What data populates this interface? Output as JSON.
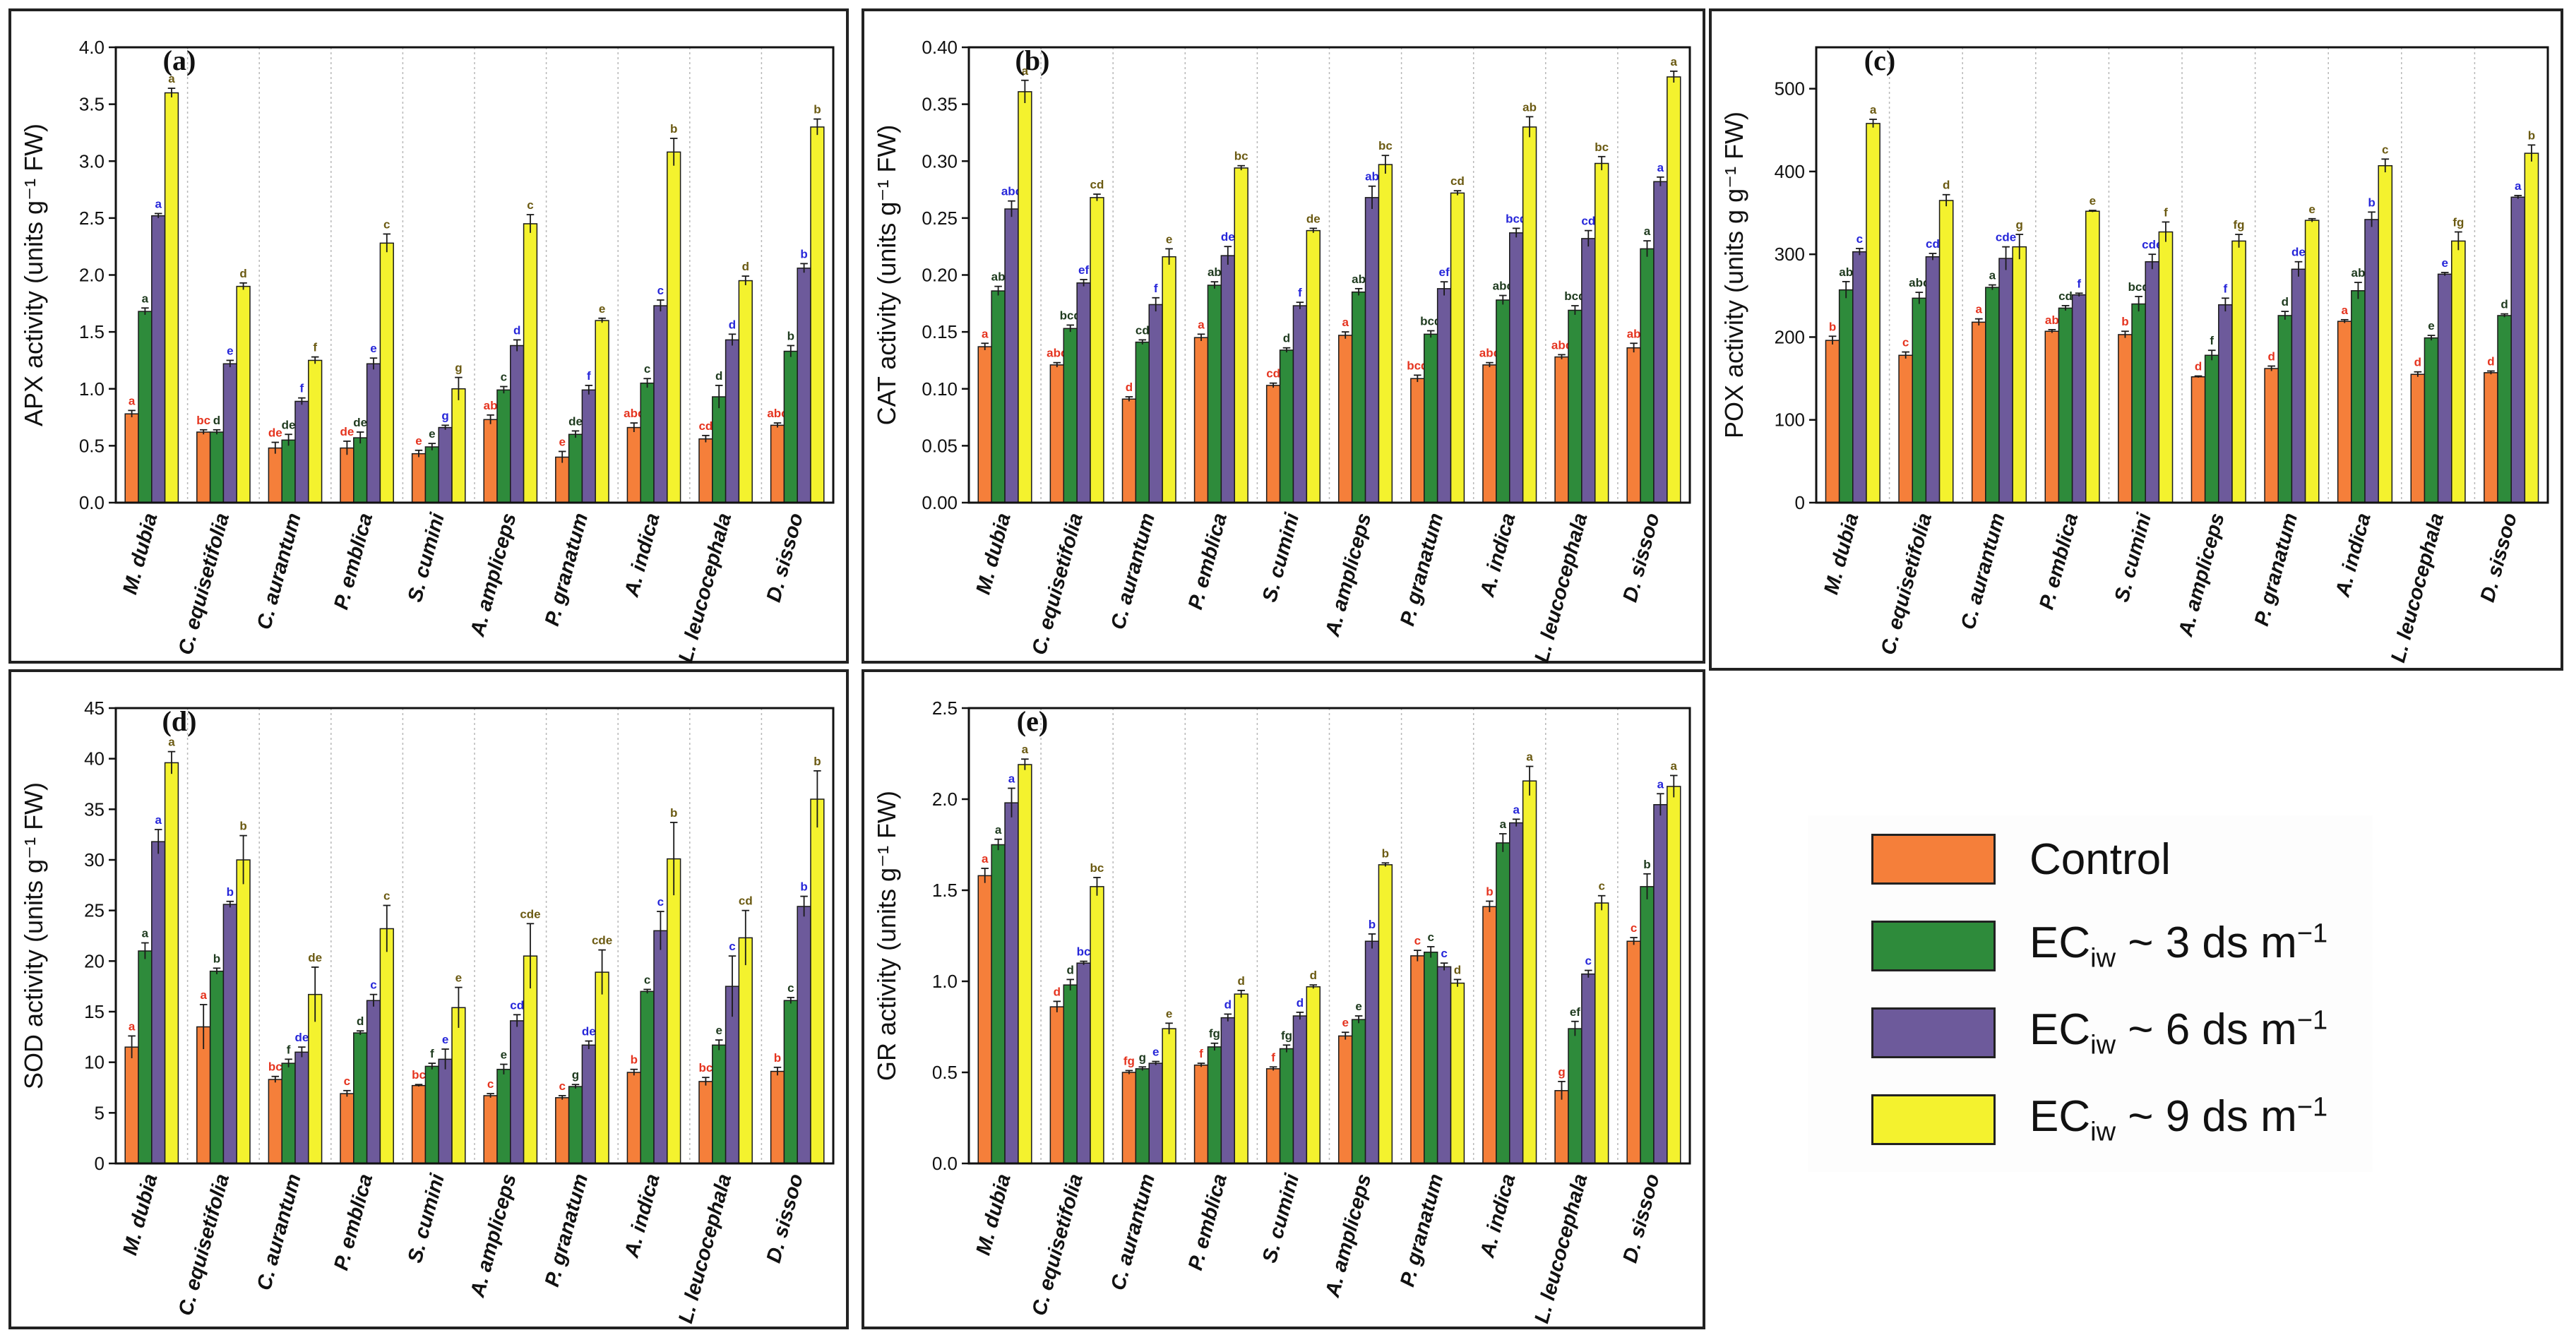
{
  "colors": {
    "control": "#F57F3A",
    "ec3": "#2E8B3B",
    "ec6": "#6D5A9B",
    "ec9": "#F4F22E",
    "sig_control": "#E5341F",
    "sig_ec3": "#1E3A1E",
    "sig_ec6": "#2626D9",
    "sig_ec9": "#6B5A12"
  },
  "legend": [
    {
      "label": "Control",
      "main": "Control",
      "sub": "",
      "suffix": ""
    },
    {
      "label": "ECiw ~ 3 ds m−1",
      "main": "EC",
      "sub": "iw",
      "suffix": " ~ 3 ds m",
      "sup": "−1"
    },
    {
      "label": "ECiw ~ 6 ds m−1",
      "main": "EC",
      "sub": "iw",
      "suffix": " ~ 6 ds m",
      "sup": "−1"
    },
    {
      "label": "ECiw ~ 9 ds m−1",
      "main": "EC",
      "sub": "iw",
      "suffix": " ~ 9 ds m",
      "sup": "−1"
    }
  ],
  "chart_data": [
    {
      "panel": "(a)",
      "type": "bar",
      "ylabel": "APX activity (units g⁻¹ FW)",
      "ylim": [
        0,
        4.0
      ],
      "yticks": [
        "0.0",
        "0.5",
        "1.0",
        "1.5",
        "2.0",
        "2.5",
        "3.0",
        "3.5",
        "4.0"
      ],
      "categories": [
        "M. dubia",
        "C. equisetifolia",
        "C. aurantum",
        "P. emblica",
        "S. cumini",
        "A. amplicеps",
        "P. granatum",
        "A. indica",
        "L. leucocephala",
        "D. sissoo"
      ],
      "series": [
        {
          "name": "Control",
          "values": [
            0.78,
            0.62,
            0.48,
            0.48,
            0.43,
            0.73,
            0.4,
            0.66,
            0.56,
            0.68
          ],
          "errors": [
            0.03,
            0.02,
            0.05,
            0.06,
            0.03,
            0.04,
            0.05,
            0.04,
            0.03,
            0.02
          ],
          "letters": [
            "a",
            "bc",
            "de",
            "de",
            "e",
            "ab",
            "e",
            "abc",
            "cd",
            "abc"
          ]
        },
        {
          "name": "ECiw ~ 3 ds m-1",
          "values": [
            1.68,
            0.62,
            0.55,
            0.57,
            0.49,
            0.99,
            0.6,
            1.05,
            0.93,
            1.33
          ],
          "errors": [
            0.03,
            0.02,
            0.05,
            0.05,
            0.03,
            0.03,
            0.03,
            0.04,
            0.1,
            0.05
          ],
          "letters": [
            "a",
            "d",
            "de",
            "de",
            "e",
            "c",
            "de",
            "c",
            "d",
            "b"
          ]
        },
        {
          "name": "ECiw ~ 6 ds m-1",
          "values": [
            2.52,
            1.22,
            0.89,
            1.22,
            0.66,
            1.38,
            0.99,
            1.73,
            1.43,
            2.06
          ],
          "errors": [
            0.02,
            0.03,
            0.03,
            0.05,
            0.02,
            0.05,
            0.04,
            0.05,
            0.05,
            0.04
          ],
          "letters": [
            "a",
            "e",
            "f",
            "e",
            "g",
            "d",
            "f",
            "c",
            "d",
            "b"
          ]
        },
        {
          "name": "ECiw ~ 9 ds m-1",
          "values": [
            3.6,
            1.9,
            1.25,
            2.28,
            1.0,
            2.45,
            1.6,
            3.08,
            1.95,
            3.3
          ],
          "errors": [
            0.04,
            0.03,
            0.03,
            0.08,
            0.1,
            0.08,
            0.02,
            0.12,
            0.04,
            0.07
          ],
          "letters": [
            "a",
            "d",
            "f",
            "c",
            "g",
            "c",
            "e",
            "b",
            "d",
            "b"
          ]
        }
      ]
    },
    {
      "panel": "(b)",
      "type": "bar",
      "ylabel": "CAT activity (units g⁻¹ FW)",
      "ylim": [
        0,
        0.4
      ],
      "yticks": [
        "0.00",
        "0.05",
        "0.10",
        "0.15",
        "0.20",
        "0.25",
        "0.30",
        "0.35",
        "0.40"
      ],
      "categories": [
        "M. dubia",
        "C. equisetifolia",
        "C. aurantum",
        "P. emblica",
        "S. cumini",
        "A. amplicеps",
        "P. granatum",
        "A. indica",
        "L. leucocephala",
        "D. sissoo"
      ],
      "series": [
        {
          "name": "Control",
          "values": [
            0.137,
            0.121,
            0.091,
            0.145,
            0.103,
            0.147,
            0.109,
            0.121,
            0.128,
            0.136
          ],
          "errors": [
            0.003,
            0.002,
            0.002,
            0.003,
            0.002,
            0.003,
            0.003,
            0.002,
            0.002,
            0.004
          ],
          "letters": [
            "a",
            "abc",
            "d",
            "a",
            "cd",
            "a",
            "bcd",
            "abc",
            "abc",
            "ab"
          ]
        },
        {
          "name": "ECiw ~ 3 ds m-1",
          "values": [
            0.186,
            0.153,
            0.141,
            0.191,
            0.134,
            0.185,
            0.148,
            0.178,
            0.169,
            0.223
          ],
          "errors": [
            0.004,
            0.003,
            0.002,
            0.003,
            0.002,
            0.003,
            0.003,
            0.004,
            0.004,
            0.007
          ],
          "letters": [
            "ab",
            "bcd",
            "cd",
            "ab",
            "d",
            "ab",
            "bcd",
            "abc",
            "bcd",
            "a"
          ]
        },
        {
          "name": "ECiw ~ 6 ds m-1",
          "values": [
            0.258,
            0.193,
            0.174,
            0.217,
            0.173,
            0.268,
            0.188,
            0.237,
            0.232,
            0.282
          ],
          "errors": [
            0.007,
            0.003,
            0.006,
            0.008,
            0.003,
            0.01,
            0.006,
            0.004,
            0.007,
            0.004
          ],
          "letters": [
            "abc",
            "ef",
            "f",
            "de",
            "f",
            "ab",
            "ef",
            "bcd",
            "cd",
            "a"
          ]
        },
        {
          "name": "ECiw ~ 9 ds m-1",
          "values": [
            0.361,
            0.268,
            0.216,
            0.294,
            0.239,
            0.297,
            0.272,
            0.33,
            0.298,
            0.374
          ],
          "errors": [
            0.01,
            0.003,
            0.007,
            0.002,
            0.002,
            0.008,
            0.002,
            0.009,
            0.006,
            0.005
          ],
          "letters": [
            "a",
            "cd",
            "e",
            "bc",
            "de",
            "bc",
            "cd",
            "ab",
            "bc",
            "a"
          ]
        }
      ]
    },
    {
      "panel": "(c)",
      "type": "bar",
      "ylabel": "POX activity (units g g⁻¹ FW)",
      "ylim": [
        0,
        550
      ],
      "yticks": [
        "0",
        "100",
        "200",
        "300",
        "400",
        "500"
      ],
      "categories": [
        "M. dubia",
        "C. equisetifolia",
        "C. aurantum",
        "P. emblica",
        "S. cumini",
        "A. amplicеps",
        "P. granatum",
        "A. indica",
        "L. leucocephala",
        "D. sissoo"
      ],
      "series": [
        {
          "name": "Control",
          "values": [
            196,
            178,
            218,
            207,
            203,
            152,
            162,
            219,
            155,
            157
          ],
          "errors": [
            5,
            4,
            4,
            2,
            4,
            1,
            3,
            2,
            3,
            2
          ],
          "letters": [
            "b",
            "c",
            "a",
            "ab",
            "b",
            "d",
            "d",
            "a",
            "d",
            "d"
          ]
        },
        {
          "name": "ECiw ~ 3 ds m-1",
          "values": [
            257,
            247,
            260,
            235,
            240,
            178,
            226,
            256,
            199,
            226
          ],
          "errors": [
            10,
            7,
            3,
            3,
            9,
            6,
            5,
            10,
            3,
            2
          ],
          "letters": [
            "ab",
            "abc",
            "a",
            "cd",
            "bcd",
            "f",
            "d",
            "ab",
            "e",
            "d"
          ]
        },
        {
          "name": "ECiw ~ 6 ds m-1",
          "values": [
            303,
            297,
            295,
            251,
            291,
            239,
            282,
            342,
            276,
            369
          ],
          "errors": [
            4,
            4,
            14,
            2,
            9,
            8,
            9,
            9,
            2,
            2
          ],
          "letters": [
            "c",
            "cd",
            "cde",
            "f",
            "cde",
            "f",
            "de",
            "b",
            "e",
            "a"
          ]
        },
        {
          "name": "ECiw ~ 9 ds m-1",
          "values": [
            458,
            365,
            309,
            352,
            327,
            316,
            341,
            407,
            316,
            422
          ],
          "errors": [
            5,
            7,
            15,
            1,
            12,
            8,
            2,
            8,
            11,
            10
          ],
          "letters": [
            "a",
            "d",
            "g",
            "e",
            "f",
            "fg",
            "e",
            "c",
            "fg",
            "b"
          ]
        }
      ]
    },
    {
      "panel": "(d)",
      "type": "bar",
      "ylabel": "SOD activity (units g⁻¹ FW)",
      "ylim": [
        0,
        45
      ],
      "yticks": [
        "0",
        "5",
        "10",
        "15",
        "20",
        "25",
        "30",
        "35",
        "40",
        "45"
      ],
      "categories": [
        "M. dubia",
        "C. equisetifolia",
        "C. aurantum",
        "P. emblica",
        "S. cumini",
        "A. amplicеps",
        "P. granatum",
        "A. indica",
        "L. leucocephala",
        "D. sissoo"
      ],
      "series": [
        {
          "name": "Control",
          "values": [
            11.5,
            13.5,
            8.3,
            6.9,
            7.7,
            6.7,
            6.5,
            9.0,
            8.1,
            9.1
          ],
          "errors": [
            1.1,
            2.2,
            0.3,
            0.3,
            0.1,
            0.2,
            0.2,
            0.3,
            0.4,
            0.4
          ],
          "letters": [
            "a",
            "a",
            "bc",
            "c",
            "bc",
            "c",
            "c",
            "b",
            "bc",
            "b"
          ]
        },
        {
          "name": "ECiw ~ 3 ds m-1",
          "values": [
            21.0,
            19.0,
            9.9,
            12.9,
            9.6,
            9.3,
            7.6,
            17.0,
            11.7,
            16.1
          ],
          "errors": [
            0.8,
            0.3,
            0.4,
            0.2,
            0.3,
            0.5,
            0.2,
            0.2,
            0.5,
            0.3
          ],
          "letters": [
            "a",
            "b",
            "f",
            "d",
            "f",
            "e",
            "g",
            "c",
            "e",
            "c"
          ]
        },
        {
          "name": "ECiw ~ 6 ds m-1",
          "values": [
            31.8,
            25.6,
            11.0,
            16.1,
            10.3,
            14.1,
            11.7,
            23.0,
            17.5,
            25.4
          ],
          "errors": [
            1.2,
            0.3,
            0.5,
            0.6,
            1.0,
            0.6,
            0.4,
            1.9,
            3.0,
            1.0
          ],
          "letters": [
            "a",
            "b",
            "de",
            "c",
            "e",
            "cd",
            "de",
            "c",
            "c",
            "b"
          ]
        },
        {
          "name": "ECiw ~ 9 ds m-1",
          "values": [
            39.6,
            30.0,
            16.7,
            23.2,
            15.4,
            20.5,
            18.9,
            30.1,
            22.3,
            36.0
          ],
          "errors": [
            1.1,
            2.4,
            2.7,
            2.3,
            2.0,
            3.2,
            2.2,
            3.6,
            2.7,
            2.8
          ],
          "letters": [
            "a",
            "b",
            "de",
            "c",
            "e",
            "cde",
            "cde",
            "b",
            "cd",
            "b"
          ]
        }
      ]
    },
    {
      "panel": "(e)",
      "type": "bar",
      "ylabel": "GR activity (units g⁻¹ FW)",
      "ylim": [
        0,
        2.5
      ],
      "yticks": [
        "0.0",
        "0.5",
        "1.0",
        "1.5",
        "2.0",
        "2.5"
      ],
      "categories": [
        "M. dubia",
        "C. equisetifolia",
        "C. aurantum",
        "P. emblica",
        "S. cumini",
        "A. amplicеps",
        "P. granatum",
        "A. indica",
        "L. leucocephala",
        "D. sissoo"
      ],
      "series": [
        {
          "name": "Control",
          "values": [
            1.58,
            0.86,
            0.5,
            0.54,
            0.52,
            0.7,
            1.14,
            1.41,
            0.4,
            1.22
          ],
          "errors": [
            0.04,
            0.03,
            0.01,
            0.01,
            0.01,
            0.02,
            0.03,
            0.03,
            0.05,
            0.02
          ],
          "letters": [
            "a",
            "d",
            "fg",
            "f",
            "f",
            "e",
            "c",
            "b",
            "g",
            "c"
          ]
        },
        {
          "name": "ECiw ~ 3 ds m-1",
          "values": [
            1.75,
            0.98,
            0.52,
            0.64,
            0.63,
            0.79,
            1.16,
            1.76,
            0.74,
            1.52
          ],
          "errors": [
            0.03,
            0.03,
            0.01,
            0.02,
            0.02,
            0.02,
            0.03,
            0.05,
            0.04,
            0.07
          ],
          "letters": [
            "a",
            "d",
            "g",
            "fg",
            "fg",
            "e",
            "c",
            "a",
            "ef",
            "b"
          ]
        },
        {
          "name": "ECiw ~ 6 ds m-1",
          "values": [
            1.98,
            1.1,
            0.55,
            0.8,
            0.81,
            1.22,
            1.08,
            1.87,
            1.04,
            1.97
          ],
          "errors": [
            0.08,
            0.01,
            0.01,
            0.02,
            0.02,
            0.04,
            0.02,
            0.02,
            0.02,
            0.06
          ],
          "letters": [
            "a",
            "bc",
            "e",
            "d",
            "d",
            "b",
            "c",
            "a",
            "c",
            "a"
          ]
        },
        {
          "name": "ECiw ~ 9 ds m-1",
          "values": [
            2.19,
            1.52,
            0.74,
            0.93,
            0.97,
            1.64,
            0.99,
            2.1,
            1.43,
            2.07
          ],
          "errors": [
            0.03,
            0.05,
            0.03,
            0.02,
            0.01,
            0.01,
            0.02,
            0.08,
            0.04,
            0.06
          ],
          "letters": [
            "a",
            "bc",
            "e",
            "d",
            "d",
            "b",
            "d",
            "a",
            "c",
            "a"
          ]
        }
      ]
    }
  ]
}
